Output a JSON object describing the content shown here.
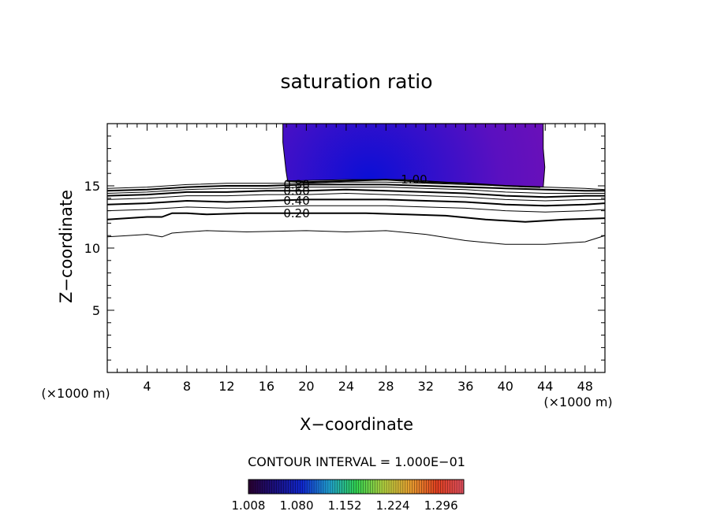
{
  "chart_data": {
    "type": "contour",
    "title": "saturation ratio",
    "xlabel": "X−coordinate",
    "ylabel": "Z−coordinate",
    "x_unit_left": "(×1000 m)",
    "x_unit_right": "(×1000 m)",
    "xlim": [
      0,
      50
    ],
    "ylim": [
      0,
      20
    ],
    "xticks": [
      4,
      8,
      12,
      16,
      20,
      24,
      28,
      32,
      36,
      40,
      44,
      48
    ],
    "yticks": [
      5,
      10,
      15
    ],
    "contour_interval_text": "CONTOUR INTERVAL = 1.000E−01",
    "contour_labels": [
      "0.20",
      "0.40",
      "0.60",
      "0.80",
      "1.00"
    ],
    "contours": [
      {
        "level": 0.1,
        "bold": false,
        "x": [
          0,
          2,
          4,
          5.5,
          6.5,
          8,
          10,
          14,
          20,
          24,
          28,
          32,
          36,
          40,
          44,
          48,
          50
        ],
        "y": [
          10.9,
          11.0,
          11.1,
          10.9,
          11.2,
          11.3,
          11.4,
          11.3,
          11.4,
          11.3,
          11.4,
          11.1,
          10.6,
          10.3,
          10.3,
          10.5,
          11.0
        ]
      },
      {
        "level": 0.2,
        "bold": true,
        "x": [
          0,
          2,
          4,
          5.5,
          6.5,
          8,
          10,
          14,
          18,
          22,
          26,
          30,
          34,
          38,
          42,
          46,
          50
        ],
        "y": [
          12.3,
          12.4,
          12.5,
          12.5,
          12.8,
          12.8,
          12.7,
          12.8,
          12.8,
          12.8,
          12.8,
          12.7,
          12.6,
          12.3,
          12.1,
          12.3,
          12.4
        ]
      },
      {
        "level": 0.3,
        "bold": false,
        "x": [
          0,
          4,
          8,
          12,
          16,
          20,
          24,
          28,
          32,
          36,
          40,
          44,
          48,
          50
        ],
        "y": [
          13.0,
          13.1,
          13.3,
          13.2,
          13.3,
          13.4,
          13.4,
          13.4,
          13.3,
          13.2,
          13.0,
          12.9,
          13.0,
          13.1
        ]
      },
      {
        "level": 0.4,
        "bold": true,
        "x": [
          0,
          4,
          8,
          12,
          16,
          20,
          24,
          28,
          32,
          36,
          40,
          44,
          48,
          50
        ],
        "y": [
          13.5,
          13.6,
          13.8,
          13.7,
          13.8,
          13.9,
          13.9,
          13.9,
          13.8,
          13.7,
          13.5,
          13.4,
          13.5,
          13.6
        ]
      },
      {
        "level": 0.5,
        "bold": false,
        "x": [
          0,
          4,
          8,
          12,
          16,
          20,
          24,
          28,
          32,
          36,
          40,
          44,
          48,
          50
        ],
        "y": [
          13.9,
          14.0,
          14.2,
          14.2,
          14.3,
          14.3,
          14.4,
          14.3,
          14.2,
          14.1,
          13.9,
          13.8,
          13.9,
          13.9
        ]
      },
      {
        "level": 0.6,
        "bold": true,
        "x": [
          0,
          4,
          8,
          12,
          16,
          20,
          24,
          28,
          32,
          36,
          40,
          44,
          48,
          50
        ],
        "y": [
          14.2,
          14.3,
          14.5,
          14.5,
          14.6,
          14.6,
          14.7,
          14.6,
          14.5,
          14.4,
          14.2,
          14.1,
          14.2,
          14.2
        ]
      },
      {
        "level": 0.7,
        "bold": false,
        "x": [
          0,
          4,
          8,
          12,
          16,
          20,
          24,
          28,
          32,
          36,
          40,
          44,
          48,
          50
        ],
        "y": [
          14.4,
          14.5,
          14.7,
          14.8,
          14.8,
          14.9,
          14.9,
          14.9,
          14.8,
          14.7,
          14.5,
          14.4,
          14.4,
          14.4
        ]
      },
      {
        "level": 0.8,
        "bold": true,
        "x": [
          0,
          4,
          8,
          12,
          16,
          20,
          24,
          28,
          32,
          36,
          40,
          44,
          48,
          50
        ],
        "y": [
          14.6,
          14.7,
          14.9,
          15.0,
          15.0,
          15.1,
          15.1,
          15.1,
          15.0,
          14.9,
          14.8,
          14.7,
          14.6,
          14.6
        ]
      },
      {
        "level": 0.9,
        "bold": false,
        "x": [
          0,
          4,
          8,
          12,
          16,
          20,
          24,
          28,
          32,
          36,
          40,
          44,
          48,
          50
        ],
        "y": [
          14.8,
          14.9,
          15.1,
          15.2,
          15.2,
          15.2,
          15.3,
          15.3,
          15.2,
          15.1,
          15.0,
          14.9,
          14.8,
          14.7
        ]
      },
      {
        "level": 1.0,
        "bold": true,
        "x": [
          18,
          20,
          24,
          28,
          32,
          36,
          40,
          43.5
        ],
        "y": [
          15.4,
          15.3,
          15.4,
          15.5,
          15.3,
          15.2,
          15.0,
          14.9
        ]
      }
    ],
    "label_positions": [
      {
        "text": "0.20",
        "x": 17.7,
        "y": 12.8
      },
      {
        "text": "0.40",
        "x": 17.7,
        "y": 13.8
      },
      {
        "text": "0.60",
        "x": 17.7,
        "y": 14.6
      },
      {
        "text": "0.80",
        "x": 17.7,
        "y": 15.1
      },
      {
        "text": "1.00",
        "x": 29.5,
        "y": 15.5
      }
    ],
    "filled_region": {
      "x_range": [
        17.8,
        43.8
      ],
      "y_range": [
        14.9,
        20
      ],
      "core_center": [
        28,
        15.7
      ],
      "color_outer": "#7a0fb2",
      "color_core": "#0a0fd6"
    },
    "colorbar": {
      "min": 1.008,
      "max": 1.33,
      "tick_labels": [
        "1.008",
        "1.080",
        "1.152",
        "1.224",
        "1.296"
      ],
      "colors": [
        "#2a0030",
        "#1a1080",
        "#1028d0",
        "#20a0d0",
        "#30d050",
        "#b0d040",
        "#e8a030",
        "#e04020",
        "#e05060"
      ]
    }
  }
}
